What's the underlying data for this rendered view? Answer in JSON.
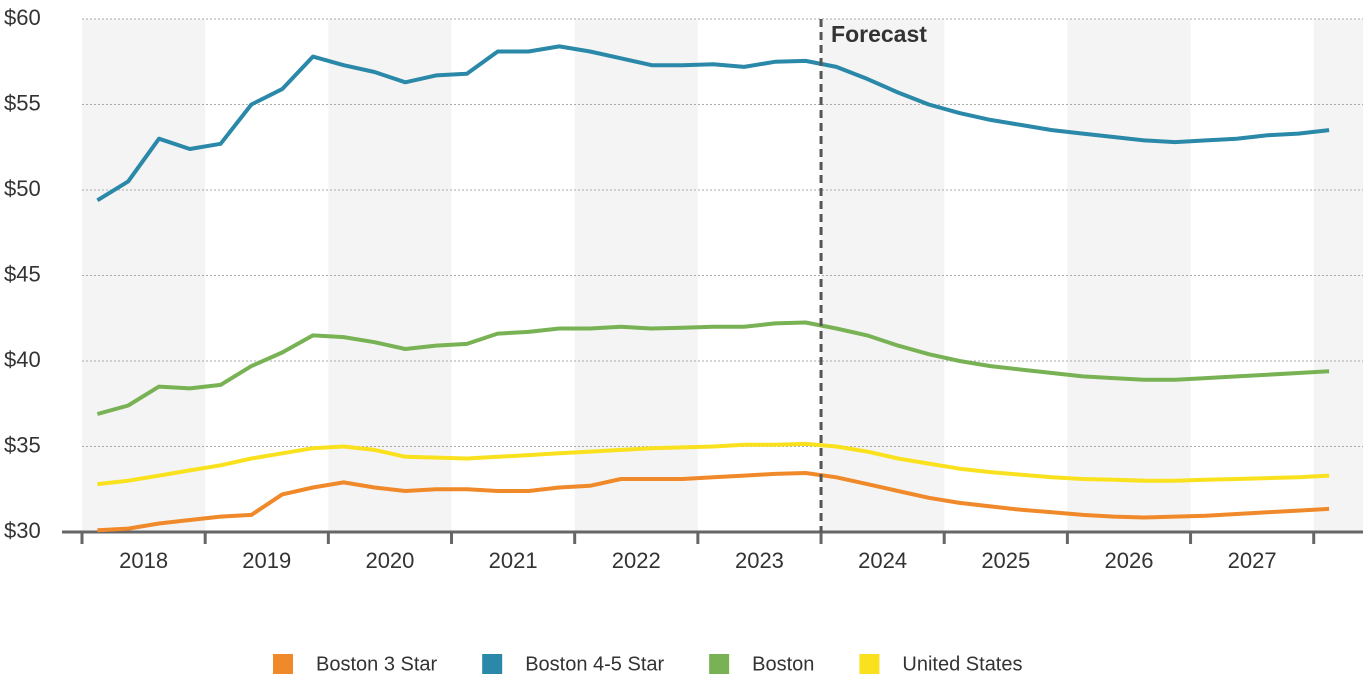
{
  "chart_data": {
    "type": "line",
    "x": [
      2018.125,
      2018.375,
      2018.625,
      2018.875,
      2019.125,
      2019.375,
      2019.625,
      2019.875,
      2020.125,
      2020.375,
      2020.625,
      2020.875,
      2021.125,
      2021.375,
      2021.625,
      2021.875,
      2022.125,
      2022.375,
      2022.625,
      2022.875,
      2023.125,
      2023.375,
      2023.625,
      2023.875,
      2024.125,
      2024.375,
      2024.625,
      2024.875,
      2025.125,
      2025.375,
      2025.625,
      2025.875,
      2026.125,
      2026.375,
      2026.625,
      2026.875,
      2027.125,
      2027.375,
      2027.625,
      2027.875,
      2028.125
    ],
    "series": [
      {
        "name": "Boston 3 Star",
        "color": "#f0892a",
        "values": [
          30.1,
          30.2,
          30.5,
          30.7,
          30.9,
          31.0,
          32.2,
          32.6,
          32.9,
          32.6,
          32.4,
          32.5,
          32.5,
          32.4,
          32.4,
          32.6,
          32.7,
          33.1,
          33.1,
          33.1,
          33.2,
          33.3,
          33.4,
          33.45,
          33.2,
          32.8,
          32.4,
          32.0,
          31.7,
          31.5,
          31.3,
          31.15,
          31.0,
          30.9,
          30.85,
          30.9,
          30.95,
          31.05,
          31.15,
          31.25,
          31.35
        ]
      },
      {
        "name": "Boston 4-5 Star",
        "color": "#2a88a8",
        "values": [
          49.4,
          50.5,
          53.0,
          52.4,
          52.7,
          55.0,
          55.9,
          57.8,
          57.3,
          56.9,
          56.3,
          56.7,
          56.8,
          58.1,
          58.1,
          58.4,
          58.1,
          57.7,
          57.3,
          57.3,
          57.35,
          57.2,
          57.5,
          57.55,
          57.2,
          56.5,
          55.7,
          55.0,
          54.5,
          54.1,
          53.8,
          53.5,
          53.3,
          53.1,
          52.9,
          52.8,
          52.9,
          53.0,
          53.2,
          53.3,
          53.5
        ]
      },
      {
        "name": "Boston",
        "color": "#78b254",
        "values": [
          36.9,
          37.4,
          38.5,
          38.4,
          38.6,
          39.7,
          40.5,
          41.5,
          41.4,
          41.1,
          40.7,
          40.9,
          41.0,
          41.6,
          41.7,
          41.9,
          41.9,
          42.0,
          41.9,
          41.95,
          42.0,
          42.0,
          42.2,
          42.25,
          41.9,
          41.5,
          40.9,
          40.4,
          40.0,
          39.7,
          39.5,
          39.3,
          39.1,
          39.0,
          38.9,
          38.9,
          39.0,
          39.1,
          39.2,
          39.3,
          39.4
        ]
      },
      {
        "name": "United States",
        "color": "#f9e11e",
        "values": [
          32.8,
          33.0,
          33.3,
          33.6,
          33.9,
          34.3,
          34.6,
          34.9,
          35.0,
          34.8,
          34.4,
          34.35,
          34.3,
          34.4,
          34.5,
          34.6,
          34.7,
          34.8,
          34.9,
          34.95,
          35.0,
          35.1,
          35.1,
          35.15,
          35.0,
          34.7,
          34.3,
          34.0,
          33.7,
          33.5,
          33.35,
          33.2,
          33.1,
          33.05,
          33.0,
          33.0,
          33.05,
          33.1,
          33.15,
          33.2,
          33.3
        ]
      }
    ],
    "xlim": [
      2018,
      2028.4
    ],
    "xticks": [
      {
        "value": 2018.5,
        "label": "2018"
      },
      {
        "value": 2019.5,
        "label": "2019"
      },
      {
        "value": 2020.5,
        "label": "2020"
      },
      {
        "value": 2021.5,
        "label": "2021"
      },
      {
        "value": 2022.5,
        "label": "2022"
      },
      {
        "value": 2023.5,
        "label": "2023"
      },
      {
        "value": 2024.5,
        "label": "2024"
      },
      {
        "value": 2025.5,
        "label": "2025"
      },
      {
        "value": 2026.5,
        "label": "2026"
      },
      {
        "value": 2027.5,
        "label": "2027"
      }
    ],
    "ylim": [
      30,
      60
    ],
    "yticks": [
      {
        "value": 30,
        "label": "$30"
      },
      {
        "value": 35,
        "label": "$35"
      },
      {
        "value": 40,
        "label": "$40"
      },
      {
        "value": 45,
        "label": "$45"
      },
      {
        "value": 50,
        "label": "$50"
      },
      {
        "value": 55,
        "label": "$55"
      },
      {
        "value": 60,
        "label": "$60"
      }
    ],
    "annotation": {
      "text": "Forecast",
      "x": 2024
    },
    "grid": true,
    "legend": "bottom"
  }
}
